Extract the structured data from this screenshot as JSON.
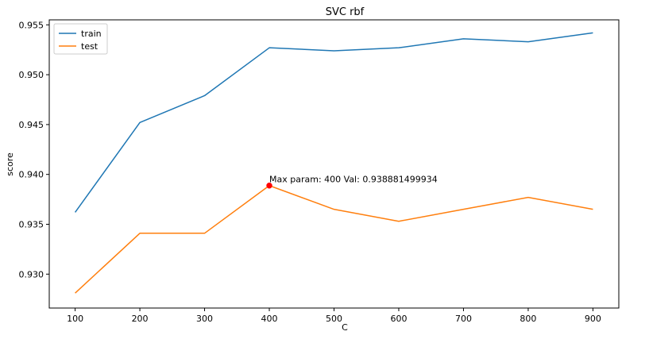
{
  "chart_data": {
    "type": "line",
    "title": "SVC rbf",
    "xlabel": "C",
    "ylabel": "score",
    "x": [
      100,
      200,
      300,
      400,
      500,
      600,
      700,
      800,
      900
    ],
    "xlim": [
      60,
      940
    ],
    "ylim": [
      0.9266,
      0.9555
    ],
    "xticks": [
      100,
      200,
      300,
      400,
      500,
      600,
      700,
      800,
      900
    ],
    "xtick_labels": [
      "100",
      "200",
      "300",
      "400",
      "500",
      "600",
      "700",
      "800",
      "900"
    ],
    "yticks": [
      0.93,
      0.935,
      0.94,
      0.945,
      0.95,
      0.955
    ],
    "ytick_labels": [
      "0.930",
      "0.935",
      "0.940",
      "0.945",
      "0.950",
      "0.955"
    ],
    "grid": false,
    "legend_position": "top-left",
    "series": [
      {
        "name": "train",
        "color": "#1f77b4",
        "values": [
          0.9362,
          0.9452,
          0.9479,
          0.9527,
          0.9524,
          0.9527,
          0.9536,
          0.9533,
          0.9542
        ]
      },
      {
        "name": "test",
        "color": "#ff7f0e",
        "values": [
          0.9281,
          0.9341,
          0.9341,
          0.93888,
          0.9365,
          0.9353,
          0.9365,
          0.9377,
          0.9365
        ]
      }
    ],
    "highlight": {
      "x": 400,
      "y": 0.938881499934,
      "color": "#ff0000",
      "label": "Max param: 400 Val: 0.938881499934"
    }
  }
}
